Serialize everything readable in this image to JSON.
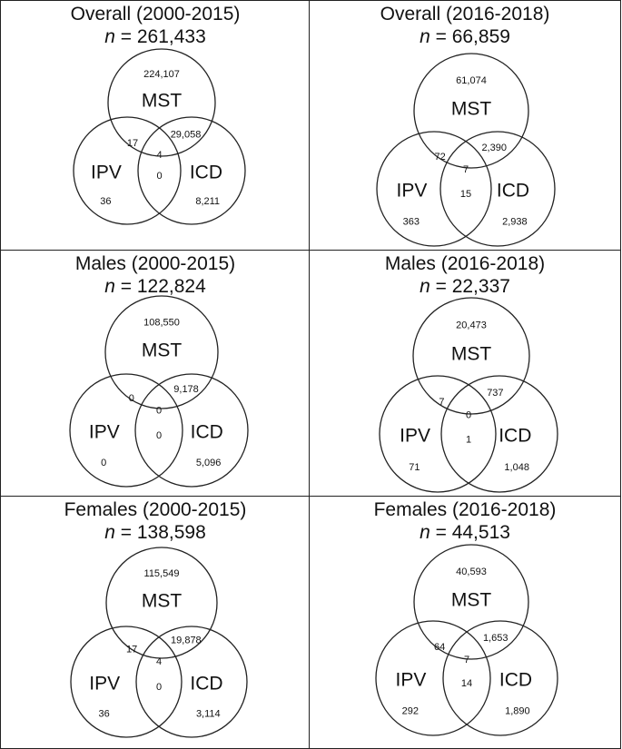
{
  "figure": {
    "panels": [
      {
        "id": "overall-2000-2015",
        "title": "Overall (2000-2015)",
        "n_symbol": "n",
        "n_text": "= 261,433",
        "sets": {
          "a": "MST",
          "b": "IPV",
          "c": "ICD"
        },
        "counts": {
          "a_only": "224,107",
          "b_only": "36",
          "c_only": "8,211",
          "ab": "17",
          "ac": "29,058",
          "bc": "0",
          "abc": "4"
        }
      },
      {
        "id": "overall-2016-2018",
        "title": "Overall (2016-2018)",
        "n_symbol": "n",
        "n_text": "= 66,859",
        "sets": {
          "a": "MST",
          "b": "IPV",
          "c": "ICD"
        },
        "counts": {
          "a_only": "61,074",
          "b_only": "363",
          "c_only": "2,938",
          "ab": "72",
          "ac": "2,390",
          "bc": "15",
          "abc": "7"
        }
      },
      {
        "id": "males-2000-2015",
        "title": "Males (2000-2015)",
        "n_symbol": "n",
        "n_text": "= 122,824",
        "sets": {
          "a": "MST",
          "b": "IPV",
          "c": "ICD"
        },
        "counts": {
          "a_only": "108,550",
          "b_only": "0",
          "c_only": "5,096",
          "ab": "0",
          "ac": "9,178",
          "bc": "0",
          "abc": "0"
        }
      },
      {
        "id": "males-2016-2018",
        "title": "Males (2016-2018)",
        "n_symbol": "n",
        "n_text": "= 22,337",
        "sets": {
          "a": "MST",
          "b": "IPV",
          "c": "ICD"
        },
        "counts": {
          "a_only": "20,473",
          "b_only": "71",
          "c_only": "1,048",
          "ab": "7",
          "ac": "737",
          "bc": "1",
          "abc": "0"
        }
      },
      {
        "id": "females-2000-2015",
        "title": "Females (2000-2015)",
        "n_symbol": "n",
        "n_text": "= 138,598",
        "sets": {
          "a": "MST",
          "b": "IPV",
          "c": "ICD"
        },
        "counts": {
          "a_only": "115,549",
          "b_only": "36",
          "c_only": "3,114",
          "ab": "17",
          "ac": "19,878",
          "bc": "0",
          "abc": "4"
        }
      },
      {
        "id": "females-2016-2018",
        "title": "Females (2016-2018)",
        "n_symbol": "n",
        "n_text": "= 44,513",
        "sets": {
          "a": "MST",
          "b": "IPV",
          "c": "ICD"
        },
        "counts": {
          "a_only": "40,593",
          "b_only": "292",
          "c_only": "1,890",
          "ab": "64",
          "ac": "1,653",
          "bc": "14",
          "abc": "7"
        }
      }
    ]
  }
}
